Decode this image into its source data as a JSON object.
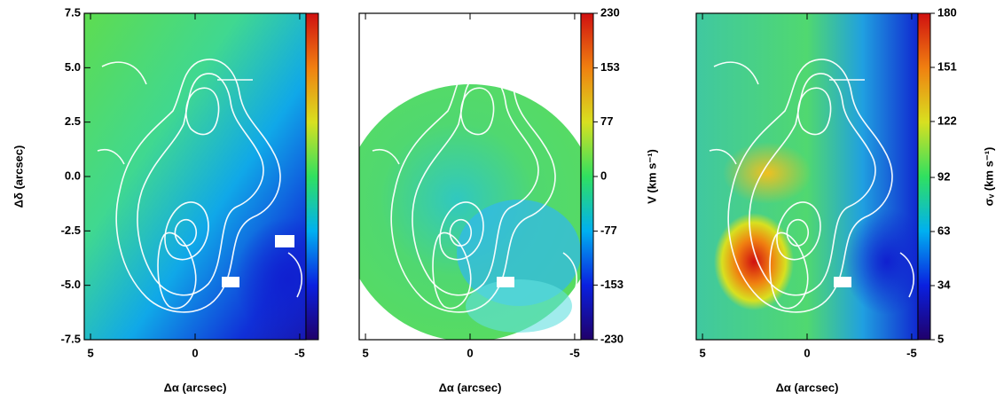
{
  "chart_data": [
    {
      "type": "map",
      "xlabel": "Δα (arcsec)",
      "ylabel": "Δδ (arcsec)",
      "xlim": [
        5.3,
        -5.3
      ],
      "ylim": [
        -7.5,
        7.5
      ],
      "xticks": [
        5,
        0,
        -5
      ],
      "yticks": [
        7.5,
        {
          "value": 5,
          "label": "5.0"
        },
        2.5,
        {
          "value": 0,
          "label": "0.0"
        },
        -2.5,
        {
          "value": -5,
          "label": "-5.0"
        },
        -7.5
      ],
      "colorbar": {
        "colormap": [
          "#20006a",
          "#0a20e0",
          "#00b0f0",
          "#30e060",
          "#d8e020",
          "#f08010",
          "#d01010"
        ]
      }
    },
    {
      "type": "map",
      "xlabel": "Δα (arcsec)",
      "xlim": [
        5.3,
        -5.3
      ],
      "ylim": [
        -7.5,
        7.5
      ],
      "xticks": [
        5,
        0,
        -5
      ],
      "colorbar": {
        "label": "V (km s⁻¹)",
        "lim": [
          -230,
          230
        ],
        "ticks": [
          230,
          153,
          77,
          0,
          -77,
          -153,
          -230
        ],
        "colormap": [
          "#20006a",
          "#0a20e0",
          "#00b0f0",
          "#30e060",
          "#d8e020",
          "#f08010",
          "#d01010"
        ]
      }
    },
    {
      "type": "map",
      "xlabel": "Δα (arcsec)",
      "xlim": [
        5.3,
        -5.3
      ],
      "ylim": [
        -7.5,
        7.5
      ],
      "xticks": [
        5,
        0,
        -5
      ],
      "colorbar": {
        "label": "σᵥ (km s⁻¹)",
        "lim": [
          5,
          180
        ],
        "ticks": [
          180,
          151,
          122,
          92,
          63,
          34,
          5
        ],
        "colormap": [
          "#20006a",
          "#0a20e0",
          "#00b0f0",
          "#30e060",
          "#d8e020",
          "#f08010",
          "#d01010"
        ]
      }
    }
  ]
}
